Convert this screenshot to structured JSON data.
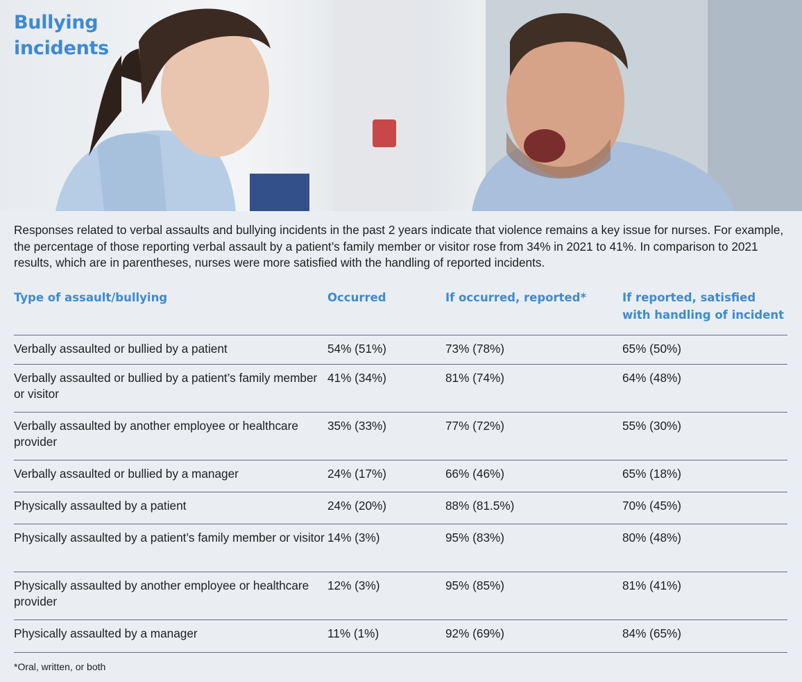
{
  "hero": {
    "title_line1": "Bullying",
    "title_line2": "incidents"
  },
  "intro": "Responses related to verbal assaults and bullying incidents in the past 2 years indicate that violence remains a key issue for nurses. For example, the percentage of those reporting verbal assault by a patient’s family member or visitor rose from 34% in 2021 to 41%. In comparison to 2021 results, which are in parentheses, nurses were more satisfied with the handling of reported incidents.",
  "table": {
    "headers": [
      "Type of assault/bullying",
      "Occurred",
      "If occurred, reported*",
      "If reported, satisfied with handling of incident"
    ],
    "rows": [
      [
        "Verbally assaulted or bullied by a patient",
        "54% (51%)",
        "73% (78%)",
        "65% (50%)"
      ],
      [
        "Verbally assaulted or bullied by a patient’s family member or visitor",
        "41% (34%)",
        "81% (74%)",
        "64% (48%)"
      ],
      [
        "Verbally assaulted by another employee or healthcare provider",
        "35% (33%)",
        "77% (72%)",
        "55% (30%)"
      ],
      [
        "Verbally assaulted or bullied by a manager",
        "24% (17%)",
        "66% (46%)",
        "65% (18%)"
      ],
      [
        "Physically assaulted by a patient",
        "24% (20%)",
        "88% (81.5%)",
        "70% (45%)"
      ],
      [
        "Physically assaulted by a patient’s family member or visitor",
        "14% (3%)",
        "95% (83%)",
        "80% (48%)"
      ],
      [
        "Physically assaulted by another employee or healthcare provider",
        "12% (3%)",
        "95% (85%)",
        "81% (41%)"
      ],
      [
        "Physically assaulted by a manager",
        "11% (1%)",
        "92% (69%)",
        "84% (65%)"
      ]
    ]
  },
  "footnote": "*Oral, written, or both",
  "colors": {
    "accent": "#3e8ad0",
    "background": "#eaeef2",
    "rule": "#5e6b93"
  }
}
